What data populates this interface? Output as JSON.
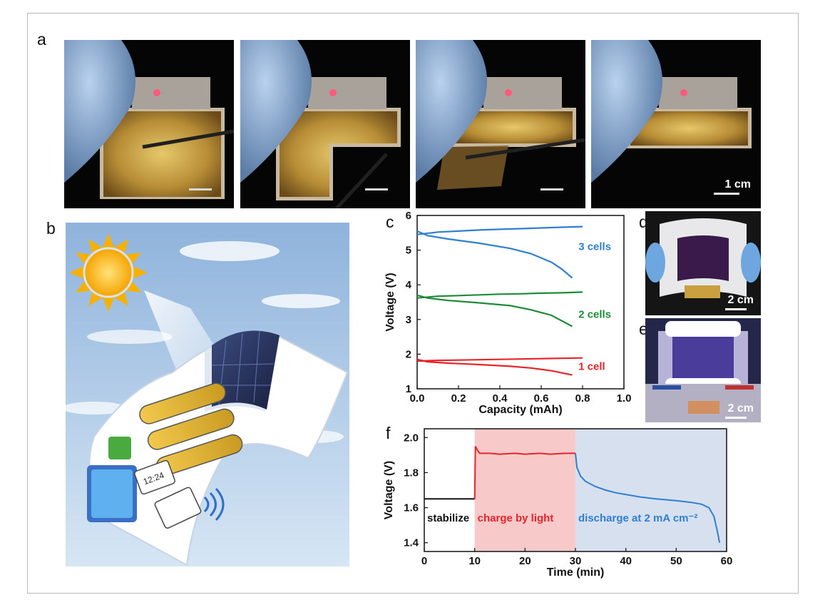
{
  "panels": {
    "a": {
      "label": "a",
      "scale_bar": "1 cm"
    },
    "b": {
      "label": "b",
      "device_badges": {
        "clock": "12:24"
      }
    },
    "c": {
      "label": "c"
    },
    "d": {
      "label": "d",
      "scale_bar": "2 cm"
    },
    "e": {
      "label": "e",
      "scale_bar": "2 cm"
    },
    "f": {
      "label": "f"
    }
  },
  "colors": {
    "red": "#e8242b",
    "green": "#1f8b3a",
    "blue": "#2f7fd0",
    "black": "#111111",
    "charge_region": "#f7c9c9",
    "discharge_region": "#d7e0ee"
  },
  "chart_data": [
    {
      "type": "line",
      "panel": "c",
      "xlabel": "Capacity (mAh)",
      "ylabel": "Voltage (V)",
      "xlim": [
        0.0,
        1.0
      ],
      "ylim": [
        1,
        6
      ],
      "xticks": [
        "0.0",
        "0.2",
        "0.4",
        "0.6",
        "0.8",
        "1.0"
      ],
      "yticks": [
        "1",
        "2",
        "3",
        "4",
        "5",
        "6"
      ],
      "series": [
        {
          "name": "3 cells",
          "color": "#2f7fd0",
          "charge": [
            [
              0.0,
              5.45
            ],
            [
              0.1,
              5.52
            ],
            [
              0.2,
              5.55
            ],
            [
              0.3,
              5.58
            ],
            [
              0.4,
              5.6
            ],
            [
              0.5,
              5.62
            ],
            [
              0.6,
              5.64
            ],
            [
              0.7,
              5.66
            ],
            [
              0.8,
              5.68
            ]
          ],
          "discharge": [
            [
              0.0,
              5.55
            ],
            [
              0.05,
              5.42
            ],
            [
              0.15,
              5.32
            ],
            [
              0.3,
              5.2
            ],
            [
              0.45,
              5.05
            ],
            [
              0.55,
              4.9
            ],
            [
              0.65,
              4.65
            ],
            [
              0.7,
              4.45
            ],
            [
              0.75,
              4.2
            ]
          ]
        },
        {
          "name": "2 cells",
          "color": "#1f8b3a",
          "charge": [
            [
              0.0,
              3.62
            ],
            [
              0.1,
              3.67
            ],
            [
              0.2,
              3.69
            ],
            [
              0.3,
              3.71
            ],
            [
              0.4,
              3.73
            ],
            [
              0.5,
              3.74
            ],
            [
              0.6,
              3.76
            ],
            [
              0.7,
              3.77
            ],
            [
              0.8,
              3.79
            ]
          ],
          "discharge": [
            [
              0.0,
              3.7
            ],
            [
              0.05,
              3.62
            ],
            [
              0.15,
              3.55
            ],
            [
              0.3,
              3.48
            ],
            [
              0.45,
              3.4
            ],
            [
              0.55,
              3.28
            ],
            [
              0.65,
              3.12
            ],
            [
              0.75,
              2.8
            ]
          ]
        },
        {
          "name": "1 cell",
          "color": "#e8242b",
          "charge": [
            [
              0.0,
              1.8
            ],
            [
              0.1,
              1.82
            ],
            [
              0.2,
              1.83
            ],
            [
              0.3,
              1.84
            ],
            [
              0.4,
              1.85
            ],
            [
              0.5,
              1.86
            ],
            [
              0.6,
              1.87
            ],
            [
              0.7,
              1.88
            ],
            [
              0.8,
              1.89
            ]
          ],
          "discharge": [
            [
              0.0,
              1.85
            ],
            [
              0.05,
              1.78
            ],
            [
              0.15,
              1.74
            ],
            [
              0.3,
              1.7
            ],
            [
              0.45,
              1.65
            ],
            [
              0.55,
              1.6
            ],
            [
              0.65,
              1.52
            ],
            [
              0.75,
              1.4
            ]
          ]
        }
      ],
      "legend_placement": "inline-right"
    },
    {
      "type": "line",
      "panel": "f",
      "xlabel": "Time (min)",
      "ylabel": "Voltage (V)",
      "xlim": [
        0,
        60
      ],
      "ylim": [
        1.35,
        2.05
      ],
      "xticks": [
        "0",
        "10",
        "20",
        "30",
        "40",
        "50",
        "60"
      ],
      "yticks": [
        "1.4",
        "1.6",
        "1.8",
        "2.0"
      ],
      "regions": [
        {
          "label": "stabilize",
          "from": 0,
          "to": 10,
          "color": "#111111",
          "shade": null
        },
        {
          "label": "charge by light",
          "from": 10,
          "to": 30,
          "color": "#e8242b",
          "shade": "#f7c9c9"
        },
        {
          "label": "discharge at 2 mA cm⁻²",
          "from": 30,
          "to": 60,
          "color": "#2f7fd0",
          "shade": "#d7e0ee"
        }
      ],
      "series": [
        {
          "segment": "stabilize",
          "color": "#111111",
          "points": [
            [
              0,
              1.65
            ],
            [
              10,
              1.65
            ]
          ]
        },
        {
          "segment": "charge",
          "color": "#e8242b",
          "points": [
            [
              10,
              1.65
            ],
            [
              10.15,
              1.95
            ],
            [
              10.5,
              1.93
            ],
            [
              11,
              1.91
            ],
            [
              13,
              1.91
            ],
            [
              15,
              1.905
            ],
            [
              18,
              1.91
            ],
            [
              20,
              1.905
            ],
            [
              23,
              1.91
            ],
            [
              25,
              1.905
            ],
            [
              28,
              1.91
            ],
            [
              30,
              1.91
            ]
          ]
        },
        {
          "segment": "discharge",
          "color": "#2f7fd0",
          "points": [
            [
              30,
              1.91
            ],
            [
              30.3,
              1.83
            ],
            [
              31,
              1.78
            ],
            [
              32,
              1.75
            ],
            [
              34,
              1.72
            ],
            [
              36,
              1.7
            ],
            [
              38,
              1.685
            ],
            [
              40,
              1.675
            ],
            [
              43,
              1.66
            ],
            [
              46,
              1.65
            ],
            [
              50,
              1.64
            ],
            [
              53,
              1.63
            ],
            [
              55,
              1.62
            ],
            [
              56.5,
              1.6
            ],
            [
              57.5,
              1.55
            ],
            [
              58.2,
              1.46
            ],
            [
              58.6,
              1.4
            ]
          ]
        }
      ]
    }
  ]
}
